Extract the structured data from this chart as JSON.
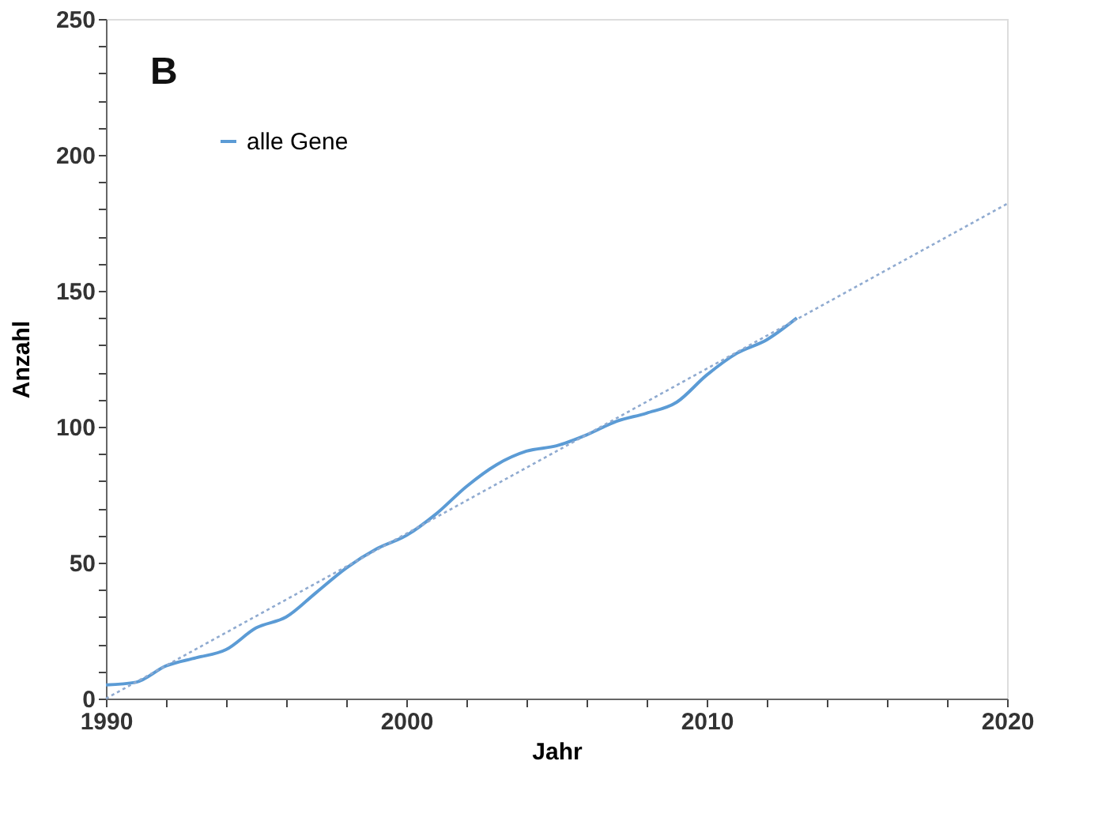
{
  "chart_data": {
    "type": "line",
    "xlabel": "Jahr",
    "ylabel": "Anzahl",
    "annotations": [
      "B"
    ],
    "xlim": [
      1990,
      2020
    ],
    "xticks": [
      1990,
      {
        "value": 1992,
        "label": null
      },
      {
        "value": 1994,
        "label": null
      },
      {
        "value": 1996,
        "label": null
      },
      {
        "value": 1998,
        "label": null
      },
      2000,
      {
        "value": 2002,
        "label": null
      },
      {
        "value": 2004,
        "label": null
      },
      {
        "value": 2006,
        "label": null
      },
      {
        "value": 2008,
        "label": null
      },
      2010,
      {
        "value": 2012,
        "label": null
      },
      {
        "value": 2014,
        "label": null
      },
      {
        "value": 2016,
        "label": null
      },
      {
        "value": 2018,
        "label": null
      },
      2020
    ],
    "ylim": [
      0,
      250
    ],
    "yticks": [
      0,
      {
        "value": 10,
        "label": null
      },
      {
        "value": 20,
        "label": null
      },
      {
        "value": 30,
        "label": null
      },
      {
        "value": 40,
        "label": null
      },
      50,
      {
        "value": 60,
        "label": null
      },
      {
        "value": 70,
        "label": null
      },
      {
        "value": 80,
        "label": null
      },
      {
        "value": 90,
        "label": null
      },
      100,
      {
        "value": 110,
        "label": null
      },
      {
        "value": 120,
        "label": null
      },
      {
        "value": 130,
        "label": null
      },
      {
        "value": 140,
        "label": null
      },
      150,
      {
        "value": 160,
        "label": null
      },
      {
        "value": 170,
        "label": null
      },
      {
        "value": 180,
        "label": null
      },
      {
        "value": 190,
        "label": null
      },
      200,
      {
        "value": 210,
        "label": null
      },
      {
        "value": 220,
        "label": null
      },
      {
        "value": 230,
        "label": null
      },
      {
        "value": 240,
        "label": null
      },
      250
    ],
    "grid": false,
    "legend": "top left",
    "marker": "none",
    "series": [
      {
        "name": "alle Gene",
        "color": "#5b9bd5",
        "line_style": "solid",
        "x": [
          1990,
          1991,
          1992,
          1993,
          1994,
          1995,
          1996,
          1997,
          1998,
          1999,
          2000,
          2001,
          2002,
          2003,
          2004,
          2005,
          2006,
          2007,
          2008,
          2009,
          2010,
          2011,
          2012,
          2013
        ],
        "values": [
          5,
          6,
          12,
          15,
          18,
          26,
          30,
          39,
          48,
          55,
          60,
          68,
          78,
          86,
          91,
          93,
          97,
          102,
          105,
          109,
          119,
          127,
          132,
          140
        ]
      },
      {
        "color": "#8faad0",
        "line_style": "dotted",
        "x": [
          1990,
          2020
        ],
        "values": [
          0,
          182
        ]
      }
    ]
  }
}
